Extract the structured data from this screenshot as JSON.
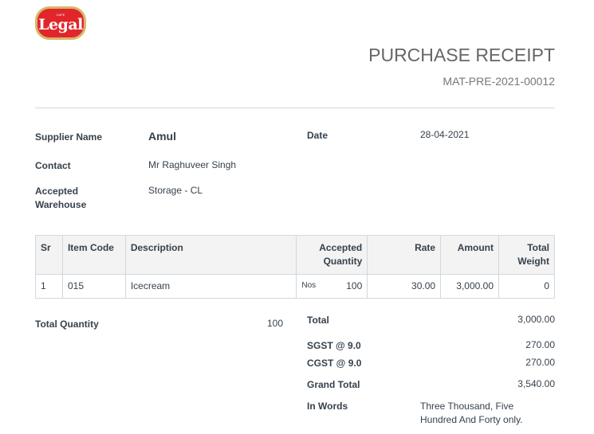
{
  "logo": {
    "text": "Legal",
    "small": "CAFE",
    "colors": {
      "red": "#e1252b",
      "gold": "#d9b56a"
    }
  },
  "header": {
    "title": "PURCHASE RECEIPT",
    "doc_no": "MAT-PRE-2021-00012"
  },
  "fields": {
    "supplier_label": "Supplier Name",
    "supplier": "Amul",
    "date_label": "Date",
    "date": "28-04-2021",
    "contact_label": "Contact",
    "contact": "Mr Raghuveer Singh",
    "warehouse_label": "Accepted Warehouse",
    "warehouse": "Storage - CL"
  },
  "table": {
    "headers": [
      "Sr",
      "Item Code",
      "Description",
      "Accepted Quantity",
      "Rate",
      "Amount",
      "Total Weight"
    ],
    "rows": [
      {
        "sr": "1",
        "code": "015",
        "desc": "Icecream",
        "uom": "Nos",
        "qty": "100",
        "rate": "30.00",
        "amount": "3,000.00",
        "weight": "0"
      }
    ]
  },
  "summary": {
    "total_qty_label": "Total Quantity",
    "total_qty": "100",
    "total_label": "Total",
    "total": "3,000.00",
    "sgst_label": "SGST @ 9.0",
    "sgst": "270.00",
    "cgst_label": "CGST @ 9.0",
    "cgst": "270.00",
    "grand_label": "Grand Total",
    "grand": "3,540.00",
    "words_label": "In Words",
    "words": "Three Thousand, Five Hundred And Forty only."
  }
}
